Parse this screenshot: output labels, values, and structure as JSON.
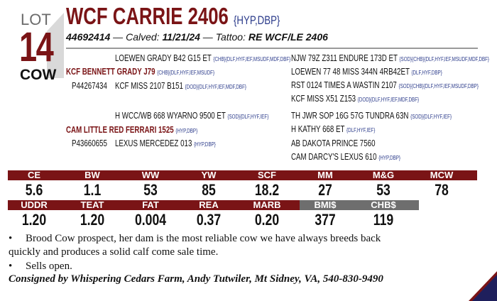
{
  "lot": {
    "label": "LOT",
    "number": "14",
    "type": "COW"
  },
  "animal": {
    "name": "WCF CARRIE 2406",
    "tags": "{HYP,DBP}",
    "reg": "44692414",
    "calved_label": "Calved:",
    "calved": "11/21/24",
    "tattoo_label": "Tattoo:",
    "tattoo": "RE WCF/LE 2406"
  },
  "pedigree": {
    "sire": {
      "name": "KCF BENNETT GRADY J79",
      "tags": "{CHB}{DLF,HYF,IEF,MSUDF}",
      "reg": "P44267434",
      "sire": {
        "name": "LOEWEN GRADY B42 G15 ET",
        "tags": "{CHB}{DLF,HYF,IEF,MSUDF,MDF,DBF}"
      },
      "dam": {
        "name": "KCF MISS 2107 B151",
        "tags": "{DOD}{DLF,HYF,IEF,MDF,DBF}"
      },
      "gg": [
        {
          "name": "NJW 79Z Z311 ENDURE 173D ET",
          "tags": "{SOD}{CHB}{DLF,HYF,IEF,MSUDF,MDF,DBF}"
        },
        {
          "name": "LOEWEN 77 48 MISS 344N 4RB42ET",
          "tags": "{DLF,HYF,DBP}"
        },
        {
          "name": "RST 0124 TIMES A WASTIN 2107",
          "tags": "{SOD}{CHB}{DLF,HYF,IEF,MSUDF,DBP}"
        },
        {
          "name": "KCF MISS X51 Z153",
          "tags": "{DOD}{DLF,HYF,IEF,MDF,DBF}"
        }
      ]
    },
    "dam": {
      "name": "CAM LITTLE RED FERRARI 1525",
      "tags": "{HYP,DBP}",
      "reg": "P43660655",
      "sire": {
        "name": "H WCC/WB 668 WYARNO 9500 ET",
        "tags": "{SOD}{DLF,HYF,IEF}"
      },
      "dam": {
        "name": "LEXUS MERCEDEZ 013",
        "tags": "{HYP,DBP}"
      },
      "gg": [
        {
          "name": "TH JWR SOP 16G 57G TUNDRA 63N",
          "tags": "{SOD}{DLF,HYF,IEF}"
        },
        {
          "name": "H KATHY 668 ET",
          "tags": "{DLF,HYF,IEF}"
        },
        {
          "name": "AB DAKOTA PRINCE 7560",
          "tags": ""
        },
        {
          "name": "CAM DARCY'S LEXUS 610",
          "tags": "{HYP,DBP}"
        }
      ]
    }
  },
  "epds_row1": [
    {
      "l": "CE",
      "v": "5.6"
    },
    {
      "l": "BW",
      "v": "1.1"
    },
    {
      "l": "WW",
      "v": "53"
    },
    {
      "l": "YW",
      "v": "85"
    },
    {
      "l": "SCF",
      "v": "18.2"
    },
    {
      "l": "MM",
      "v": "27"
    },
    {
      "l": "M&G",
      "v": "53"
    },
    {
      "l": "MCW",
      "v": "78"
    }
  ],
  "epds_row2": [
    {
      "l": "UDDR",
      "v": "1.20"
    },
    {
      "l": "TEAT",
      "v": "1.20"
    },
    {
      "l": "FAT",
      "v": "0.004"
    },
    {
      "l": "REA",
      "v": "0.37"
    },
    {
      "l": "MARB",
      "v": "0.20"
    },
    {
      "l": "BMI$",
      "v": "377"
    },
    {
      "l": "CHB$",
      "v": "119"
    }
  ],
  "notes": [
    "Brood Cow prospect, her dam is the most reliable cow we have always breeds back",
    "quickly and produces a solid calf come sale time.",
    "Sells open."
  ],
  "consigned": "Consigned by Whispering Cedars Farm, Andy Tutwiler, Mt Sidney, VA, 540-830-9490",
  "colors": {
    "maroon": "#7a1416",
    "gray": "#6e6e6e",
    "navy": "#1e1f5c"
  }
}
